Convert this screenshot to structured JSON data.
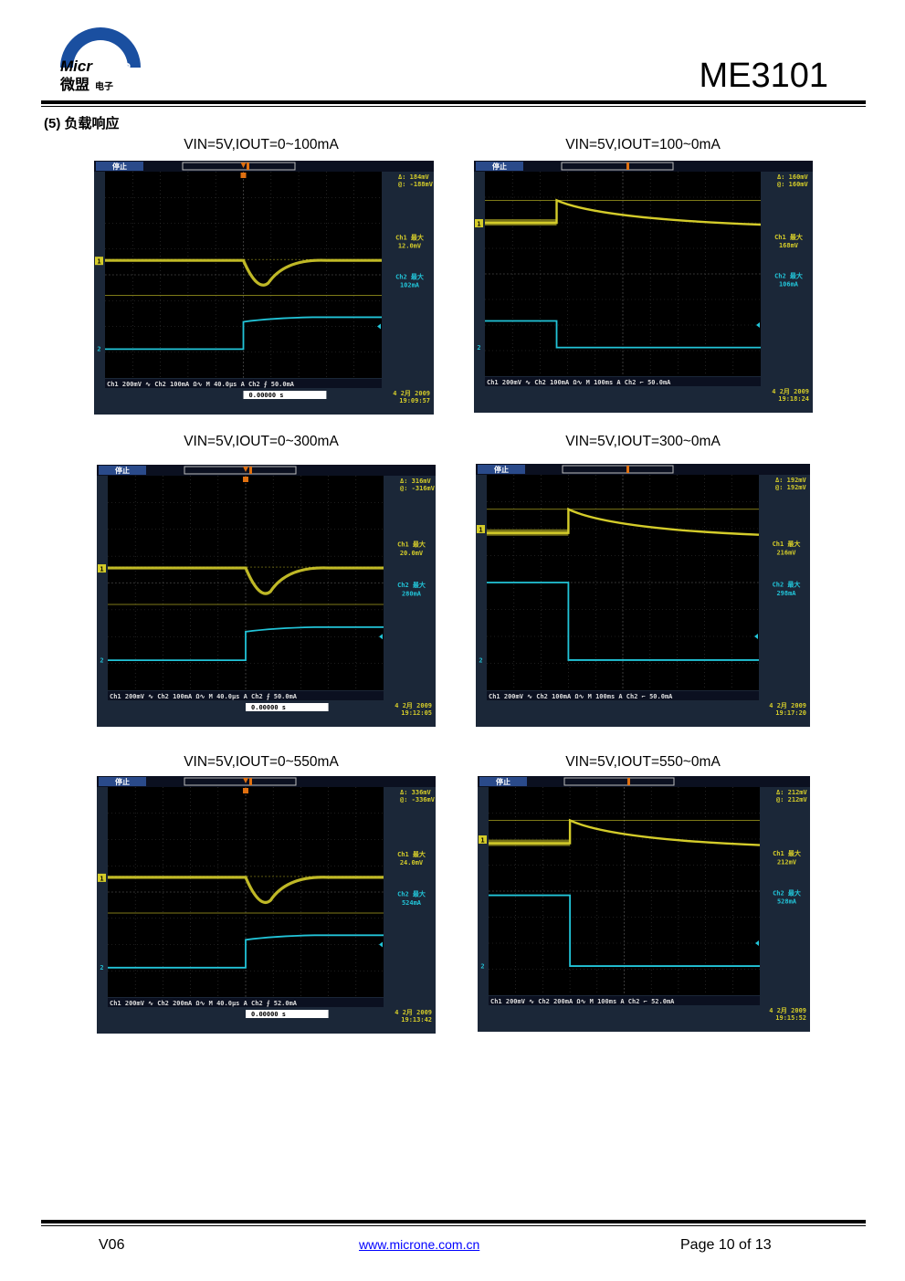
{
  "header": {
    "logo_text_en": "MicrOne",
    "logo_text_cn": "微盟",
    "logo_sub": "电子",
    "part_number": "ME3101"
  },
  "section_title": "(5) 负载响应",
  "scopes": [
    {
      "caption": "VIN=5V,IOUT=0~100mA",
      "status": "停止",
      "cursor_delta": "Δ:  184mV",
      "cursor_at": "@: -188mV",
      "ch1_label": "Ch1 最大",
      "ch1_value": "12.0mV",
      "ch2_label": "Ch2 最大",
      "ch2_value": "102mA",
      "bottom_bar": "Ch1  200mV ∿ Ch2  100mA Ω∿ M 40.0µs  A  Ch2 ⨍ 50.0mA",
      "trigger": "0.00000 s",
      "date": "4 2月 2009",
      "time": "19:09:57",
      "kind": "step-up",
      "show_trigger": true
    },
    {
      "caption": "VIN=5V,IOUT=100~0mA",
      "status": "停止",
      "cursor_delta": "Δ:  160mV",
      "cursor_at": "@:  160mV",
      "ch1_label": "Ch1 最大",
      "ch1_value": "168mV",
      "ch2_label": "Ch2 最大",
      "ch2_value": "106mA",
      "bottom_bar": "Ch1  200mV ∿ Ch2  100mA Ω∿ M 100ms  A  Ch2 ⌐ 50.0mA",
      "trigger": "",
      "date": "4 2月 2009",
      "time": "19:18:24",
      "kind": "step-down",
      "show_trigger": false
    },
    {
      "caption": "VIN=5V,IOUT=0~300mA",
      "status": "停止",
      "cursor_delta": "Δ:  316mV",
      "cursor_at": "@: -316mV",
      "ch1_label": "Ch1 最大",
      "ch1_value": "20.0mV",
      "ch2_label": "Ch2 最大",
      "ch2_value": "280mA",
      "bottom_bar": "Ch1  200mV ∿ Ch2  100mA Ω∿ M 40.0µs  A  Ch2 ⨍ 50.0mA",
      "trigger": "0.00000 s",
      "date": "4 2月 2009",
      "time": "19:12:05",
      "kind": "step-up",
      "show_trigger": true
    },
    {
      "caption": "VIN=5V,IOUT=300~0mA",
      "status": "停止",
      "cursor_delta": "Δ:  192mV",
      "cursor_at": "@:  192mV",
      "ch1_label": "Ch1 最大",
      "ch1_value": "216mV",
      "ch2_label": "Ch2 最大",
      "ch2_value": "298mA",
      "bottom_bar": "Ch1  200mV ∿ Ch2  100mA Ω∿ M 100ms  A  Ch2 ⌐ 50.0mA",
      "trigger": "",
      "date": "4 2月 2009",
      "time": "19:17:20",
      "kind": "step-down",
      "show_trigger": false
    },
    {
      "caption": "VIN=5V,IOUT=0~550mA",
      "status": "停止",
      "cursor_delta": "Δ:  336mV",
      "cursor_at": "@: -336mV",
      "ch1_label": "Ch1 最大",
      "ch1_value": "24.0mV",
      "ch2_label": "Ch2 最大",
      "ch2_value": "524mA",
      "bottom_bar": "Ch1  200mV ∿ Ch2  200mA Ω∿ M 40.0µs  A  Ch2 ⨍ 52.0mA",
      "trigger": "0.00000 s",
      "date": "4 2月 2009",
      "time": "19:13:42",
      "kind": "step-up",
      "show_trigger": true
    },
    {
      "caption": "VIN=5V,IOUT=550~0mA",
      "status": "停止",
      "cursor_delta": "Δ:  212mV",
      "cursor_at": "@:  212mV",
      "ch1_label": "Ch1 最大",
      "ch1_value": "212mV",
      "ch2_label": "Ch2 最大",
      "ch2_value": "528mA",
      "bottom_bar": "Ch1  200mV ∿ Ch2  200mA Ω∿ M 100ms  A  Ch2 ⌐ 52.0mA",
      "trigger": "",
      "date": "4 2月 2009",
      "time": "19:15:52",
      "kind": "step-down",
      "show_trigger": false
    }
  ],
  "colors": {
    "ch1": "#d4cc2a",
    "ch2": "#22c4d8",
    "screen_bg": "#000000",
    "frame_bg": "#1b2738",
    "grid": "#3a3a3a"
  },
  "footer": {
    "version": "V06",
    "url": "www.microne.com.cn",
    "page": "Page 10 of 13"
  }
}
